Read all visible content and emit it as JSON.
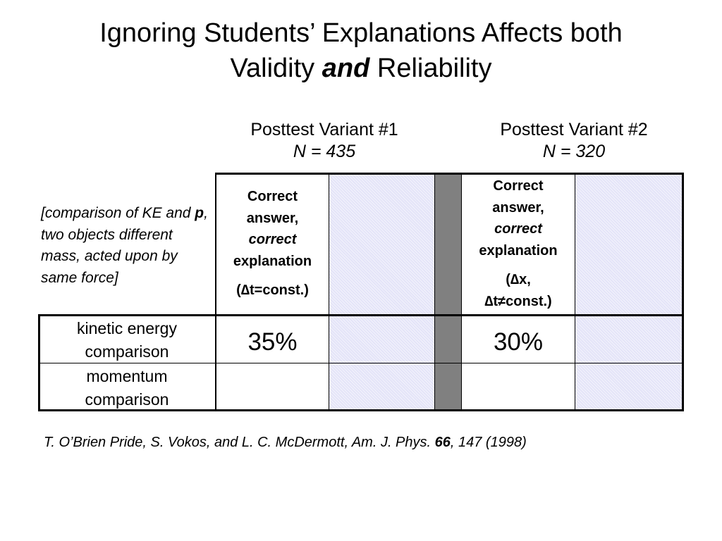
{
  "slide": {
    "title_part1": "Ignoring Students’ Explanations Affects both",
    "title_part2": "Validity",
    "title_emphasis": "and",
    "title_part3": "Reliability"
  },
  "variants": [
    {
      "label": "Posttest Variant #1",
      "n_label": "N = 435"
    },
    {
      "label": "Posttest Variant #2",
      "n_label": "N = 320"
    }
  ],
  "context": {
    "part1": "[comparison of KE and ",
    "bold": "p",
    "part2": ", two objects different mass, acted upon by same force]"
  },
  "headers": [
    {
      "line1": "Correct",
      "line2": "answer,",
      "line3": "correct",
      "line4": "explanation",
      "condition": "(∆t=const.)"
    },
    {
      "line1": "Correct",
      "line2": "answer,",
      "line3": "correct",
      "line4": "explanation",
      "condition_a": "(∆x,",
      "condition_b": "∆t≠const.)"
    }
  ],
  "rows": [
    {
      "label_a": "kinetic energy",
      "label_b": "comparison",
      "variant1": "35%",
      "variant2": "30%"
    },
    {
      "label_a": "momentum",
      "label_b": "comparison",
      "variant1": "",
      "variant2": ""
    }
  ],
  "citation": {
    "text": "T. O’Brien Pride, S. Vokos, and L. C.  McDermott, Am. J. Phys. ",
    "volume": "66",
    "pages": ", 147 (1998)"
  },
  "colors": {
    "shaded": "#e4e4f8",
    "divider": "#808080"
  }
}
